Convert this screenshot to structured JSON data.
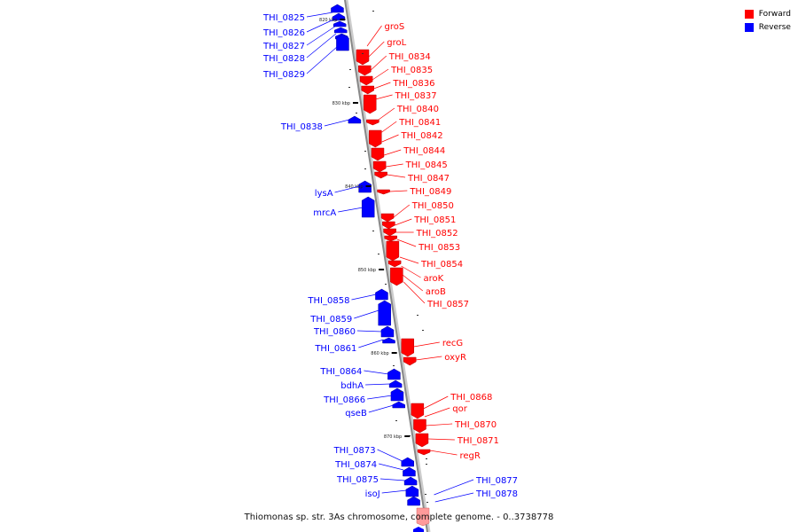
{
  "caption": "Thiomonas sp. str. 3As chromosome, complete genome. - 0..3738778",
  "legend": [
    {
      "label": "Forward",
      "color": "#ff0000"
    },
    {
      "label": "Reverse",
      "color": "#0000ff"
    }
  ],
  "colors": {
    "forward": "#ff0000",
    "reverse": "#0000ff",
    "backbone": "#888888"
  },
  "ticks": [
    "820 kbp",
    "830 kbp",
    "840 kbp",
    "850 kbp",
    "860 kbp",
    "870 kbp"
  ],
  "reverse_labels": [
    "THI_0825",
    "THI_0826",
    "THI_0827",
    "THI_0828",
    "THI_0829",
    "THI_0838",
    "lysA",
    "mrcA",
    "THI_0858",
    "THI_0859",
    "THI_0860",
    "THI_0861",
    "THI_0864",
    "bdhA",
    "THI_0866",
    "qseB",
    "THI_0873",
    "THI_0874",
    "THI_0875",
    "isoJ",
    "THI_0877",
    "THI_0878"
  ],
  "forward_labels": [
    "groS",
    "groL",
    "THI_0834",
    "THI_0835",
    "THI_0836",
    "THI_0837",
    "THI_0840",
    "THI_0841",
    "THI_0842",
    "THI_0844",
    "THI_0845",
    "THI_0847",
    "THI_0849",
    "THI_0850",
    "THI_0851",
    "THI_0852",
    "THI_0853",
    "THI_0854",
    "aroK",
    "aroB",
    "THI_0857",
    "recG",
    "oxyR",
    "THI_0868",
    "qor",
    "THI_0870",
    "THI_0871",
    "regR"
  ]
}
